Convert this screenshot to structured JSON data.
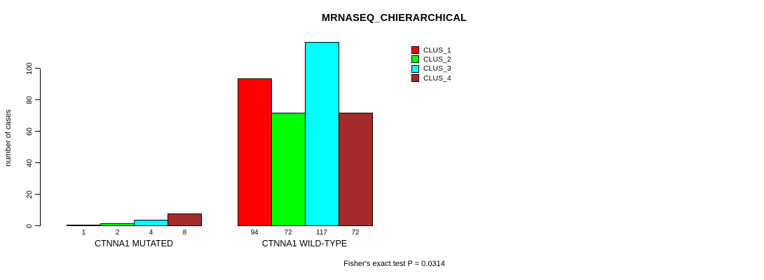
{
  "chart_data": {
    "type": "bar",
    "title": "MRNASEQ_CHIERARCHICAL",
    "ylabel": "number of cases",
    "xlabel": "",
    "ytick_values": [
      0,
      20,
      40,
      60,
      80,
      100
    ],
    "ylim": [
      0,
      118
    ],
    "grid": false,
    "legend_position": "top-right",
    "series": [
      {
        "name": "CLUS_1",
        "color": "#ff0000"
      },
      {
        "name": "CLUS_2",
        "color": "#00ff00"
      },
      {
        "name": "CLUS_3",
        "color": "#00ffff"
      },
      {
        "name": "CLUS_4",
        "color": "#a52a2a"
      }
    ],
    "categories": [
      "CTNNA1 MUTATED",
      "CTNNA1 WILD-TYPE"
    ],
    "groups": [
      {
        "label": "CTNNA1 MUTATED",
        "values": [
          1,
          2,
          4,
          8
        ]
      },
      {
        "label": "CTNNA1 WILD-TYPE",
        "values": [
          94,
          72,
          117,
          72
        ]
      }
    ],
    "footer": "Fisher's exact test P = 0.0314",
    "colors": {
      "axis": "#000000",
      "bar_border": "#000000",
      "background": "#ffffff"
    }
  }
}
